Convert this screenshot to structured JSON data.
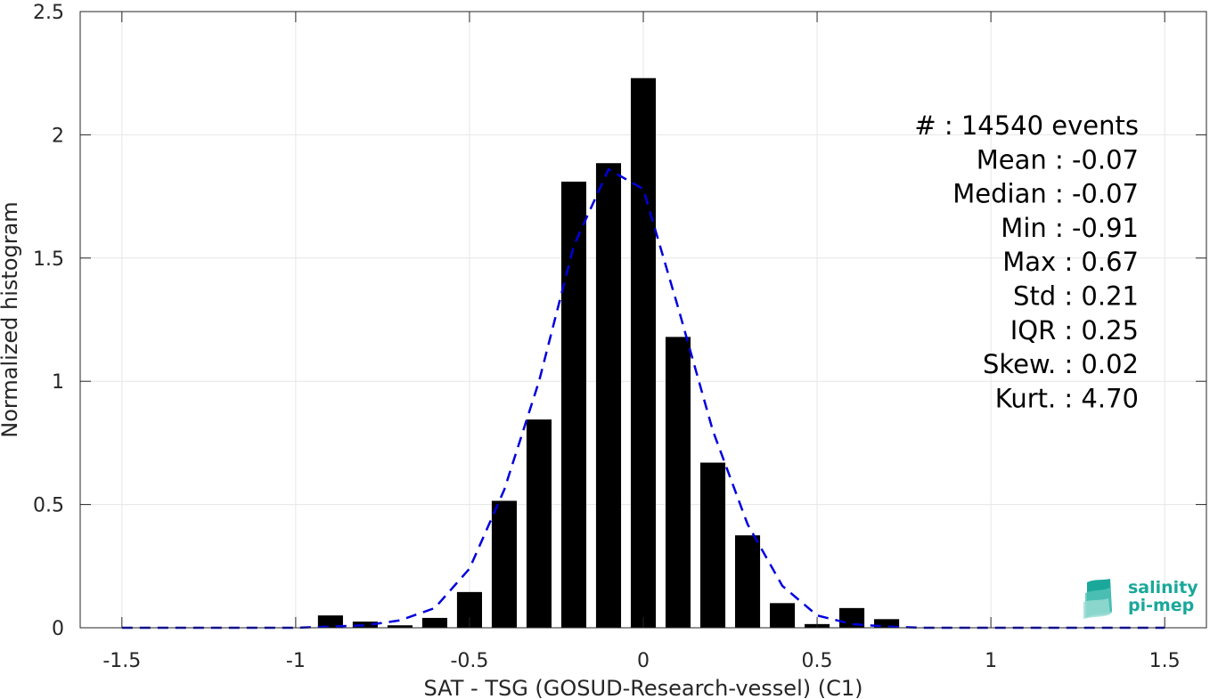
{
  "chart_data": {
    "type": "bar",
    "xlabel": "SAT - TSG (GOSUD-Research-vessel) (C1)",
    "ylabel": "Normalized histogram",
    "xlim": [
      -1.62,
      1.62
    ],
    "ylim": [
      0,
      2.5
    ],
    "xticks": [
      -1.5,
      -1,
      -0.5,
      0,
      0.5,
      1,
      1.5
    ],
    "xtick_labels": [
      "-1.5",
      "-1",
      "-0.5",
      "0",
      "0.5",
      "1",
      "1.5"
    ],
    "yticks": [
      0,
      0.5,
      1,
      1.5,
      2,
      2.5
    ],
    "ytick_labels": [
      "0",
      "0.5",
      "1",
      "1.5",
      "2",
      "2.5"
    ],
    "grid": true,
    "bar_color": "#000000",
    "fit_color": "#0000dd",
    "bars": {
      "x": [
        -0.9,
        -0.8,
        -0.7,
        -0.6,
        -0.5,
        -0.4,
        -0.3,
        -0.2,
        -0.1,
        0.0,
        0.1,
        0.2,
        0.3,
        0.4,
        0.5,
        0.6,
        0.7
      ],
      "values": [
        0.05,
        0.025,
        0.01,
        0.04,
        0.145,
        0.515,
        0.845,
        1.81,
        1.885,
        2.23,
        1.18,
        0.67,
        0.375,
        0.1,
        0.015,
        0.08,
        0.035
      ]
    },
    "fit_curve": {
      "x": [
        -1.5,
        -1.4,
        -1.3,
        -1.2,
        -1.1,
        -1.0,
        -0.9,
        -0.8,
        -0.7,
        -0.6,
        -0.5,
        -0.4,
        -0.3,
        -0.2,
        -0.1,
        0.0,
        0.1,
        0.2,
        0.3,
        0.4,
        0.5,
        0.6,
        0.7,
        0.8,
        0.9,
        1.0,
        1.1,
        1.2,
        1.3,
        1.4,
        1.5
      ],
      "values": [
        0,
        0,
        0,
        0,
        0,
        0,
        0.005,
        0.01,
        0.03,
        0.08,
        0.24,
        0.56,
        1.0,
        1.55,
        1.86,
        1.78,
        1.3,
        0.8,
        0.42,
        0.17,
        0.05,
        0.015,
        0.005,
        0,
        0,
        0,
        0,
        0,
        0,
        0,
        0
      ]
    },
    "stats": [
      "#  : 14540 events",
      "Mean : -0.07",
      "Median : -0.07",
      "Min : -0.91",
      "Max : 0.67",
      "Std : 0.21",
      "IQR : 0.25",
      "Skew. : 0.02",
      "Kurt. : 4.70"
    ]
  },
  "logo": {
    "line1": "salinity",
    "line2": "pi-mep",
    "color": "#1aa89a"
  }
}
